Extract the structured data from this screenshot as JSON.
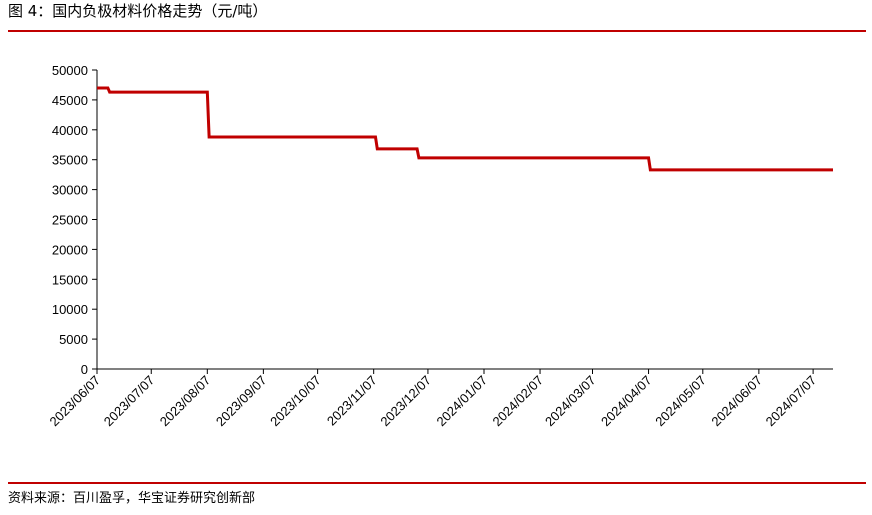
{
  "chart_data": {
    "type": "line",
    "title": "图 4：国内负极材料价格走势（元/吨）",
    "source": "资料来源：百川盈孚，华宝证券研究创新部",
    "x": [
      "2023/06/07",
      "2023/06/13",
      "2023/06/14",
      "2023/08/07",
      "2023/08/08",
      "2023/11/08",
      "2023/11/09",
      "2023/12/01",
      "2023/12/02",
      "2024/04/07",
      "2024/04/08",
      "2024/07/18"
    ],
    "series": [
      {
        "name": "负极材料价格",
        "color": "#c00000",
        "values": [
          47000,
          47000,
          46300,
          46300,
          38800,
          38800,
          36800,
          36800,
          35300,
          35300,
          33300,
          33300
        ]
      }
    ],
    "xlim": [
      "2023/06/07",
      "2024/07/18"
    ],
    "xticks": [
      "2023/06/07",
      "2023/07/07",
      "2023/08/07",
      "2023/09/07",
      "2023/10/07",
      "2023/11/07",
      "2023/12/07",
      "2024/01/07",
      "2024/02/07",
      "2024/03/07",
      "2024/04/07",
      "2024/05/07",
      "2024/06/07",
      "2024/07/07"
    ],
    "ylim": [
      0,
      50000
    ],
    "yticks": [
      0,
      5000,
      10000,
      15000,
      20000,
      25000,
      30000,
      35000,
      40000,
      45000,
      50000
    ],
    "grid": false
  }
}
